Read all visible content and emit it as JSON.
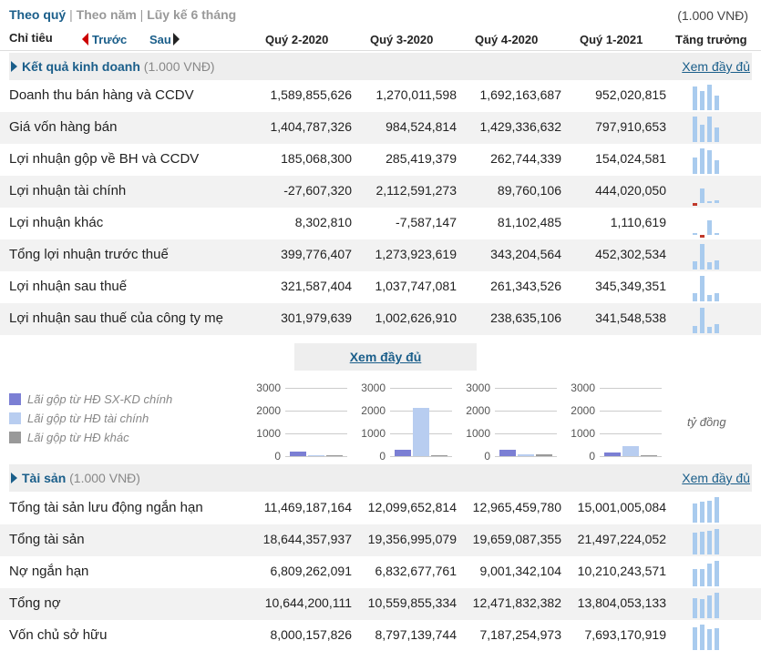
{
  "tabs": {
    "active": "Theo quý",
    "sep1": "|",
    "t2": "Theo năm",
    "sep2": "|",
    "t3": "Lũy kế 6 tháng"
  },
  "unit_top": "(1.000 VNĐ)",
  "header": {
    "chitieu": "Chỉ tiêu",
    "prev": "Trước",
    "next": "Sau",
    "periods": [
      "Quý 2-2020",
      "Quý 3-2020",
      "Quý 4-2020",
      "Quý 1-2021"
    ],
    "growth": "Tăng trưởng"
  },
  "section1": {
    "title": "Kết quả kinh doanh",
    "unit": "(1.000 VNĐ)",
    "more": "Xem đầy đủ"
  },
  "section2": {
    "title": "Tài sản",
    "unit": "(1.000 VNĐ)",
    "more": "Xem đầy đủ"
  },
  "xem_full": "Xem đầy đủ",
  "legend": [
    "Lãi gộp từ HĐ SX-KD chính",
    "Lãi gộp từ HĐ tài chính",
    "Lãi gộp từ HĐ khác"
  ],
  "colors": {
    "accent": "#1a5e8a",
    "sxkd": "#7b7fd4",
    "taichinh": "#b8cdf0",
    "khac": "#999999",
    "spark": "#a9cbee",
    "negative": "#c0392b"
  },
  "tydong": "tỷ đồng",
  "kqkd_rows": [
    {
      "label": "Doanh thu bán hàng và CCDV",
      "values": [
        "1,589,855,626",
        "1,270,011,598",
        "1,692,163,687",
        "952,020,815"
      ]
    },
    {
      "label": "Giá vốn hàng bán",
      "values": [
        "1,404,787,326",
        "984,524,814",
        "1,429,336,632",
        "797,910,653"
      ]
    },
    {
      "label": "Lợi nhuận gộp về BH và CCDV",
      "values": [
        "185,068,300",
        "285,419,379",
        "262,744,339",
        "154,024,581"
      ]
    },
    {
      "label": "Lợi nhuận tài chính",
      "values": [
        "-27,607,320",
        "2,112,591,273",
        "89,760,106",
        "444,020,050"
      ]
    },
    {
      "label": "Lợi nhuận khác",
      "values": [
        "8,302,810",
        "-7,587,147",
        "81,102,485",
        "1,110,619"
      ]
    },
    {
      "label": "Tổng lợi nhuận trước thuế",
      "values": [
        "399,776,407",
        "1,273,923,619",
        "343,204,564",
        "452,302,534"
      ]
    },
    {
      "label": "Lợi nhuận sau thuế",
      "values": [
        "321,587,404",
        "1,037,747,081",
        "261,343,526",
        "345,349,351"
      ]
    },
    {
      "label": "Lợi nhuận sau thuế của công ty mẹ",
      "values": [
        "301,979,639",
        "1,002,626,910",
        "238,635,106",
        "341,548,538"
      ]
    }
  ],
  "taisan_rows": [
    {
      "label": "Tổng tài sản lưu động ngắn hạn",
      "values": [
        "11,469,187,164",
        "12,099,652,814",
        "12,965,459,780",
        "15,001,005,084"
      ]
    },
    {
      "label": "Tổng tài sản",
      "values": [
        "18,644,357,937",
        "19,356,995,079",
        "19,659,087,355",
        "21,497,224,052"
      ]
    },
    {
      "label": "Nợ ngắn hạn",
      "values": [
        "6,809,262,091",
        "6,832,677,761",
        "9,001,342,104",
        "10,210,243,571"
      ]
    },
    {
      "label": "Tổng nợ",
      "values": [
        "10,644,200,111",
        "10,559,855,334",
        "12,471,832,382",
        "13,804,053,133"
      ]
    },
    {
      "label": "Vốn chủ sở hữu",
      "values": [
        "8,000,157,826",
        "8,797,139,744",
        "7,187,254,973",
        "7,693,170,919"
      ]
    }
  ],
  "chart_data": [
    {
      "type": "bar",
      "title": "",
      "categories": [
        "Lãi gộp từ HĐ SX-KD chính",
        "Lãi gộp từ HĐ tài chính",
        "Lãi gộp từ HĐ khác"
      ],
      "values": [
        185,
        -28,
        8
      ],
      "ylim": [
        0,
        3000
      ],
      "yticks": [
        "3000",
        "2000",
        "1000",
        "0"
      ]
    },
    {
      "type": "bar",
      "title": "",
      "categories": [
        "Lãi gộp từ HĐ SX-KD chính",
        "Lãi gộp từ HĐ tài chính",
        "Lãi gộp từ HĐ khác"
      ],
      "values": [
        285,
        2113,
        -8
      ],
      "ylim": [
        0,
        3000
      ],
      "yticks": [
        "3000",
        "2000",
        "1000",
        "0"
      ]
    },
    {
      "type": "bar",
      "title": "",
      "categories": [
        "Lãi gộp từ HĐ SX-KD chính",
        "Lãi gộp từ HĐ tài chính",
        "Lãi gộp từ HĐ khác"
      ],
      "values": [
        263,
        90,
        81
      ],
      "ylim": [
        0,
        3000
      ],
      "yticks": [
        "3000",
        "2000",
        "1000",
        "0"
      ]
    },
    {
      "type": "bar",
      "title": "",
      "categories": [
        "Lãi gộp từ HĐ SX-KD chính",
        "Lãi gộp từ HĐ tài chính",
        "Lãi gộp từ HĐ khác"
      ],
      "values": [
        154,
        444,
        1
      ],
      "ylim": [
        0,
        3000
      ],
      "yticks": [
        "3000",
        "2000",
        "1000",
        "0"
      ]
    }
  ]
}
